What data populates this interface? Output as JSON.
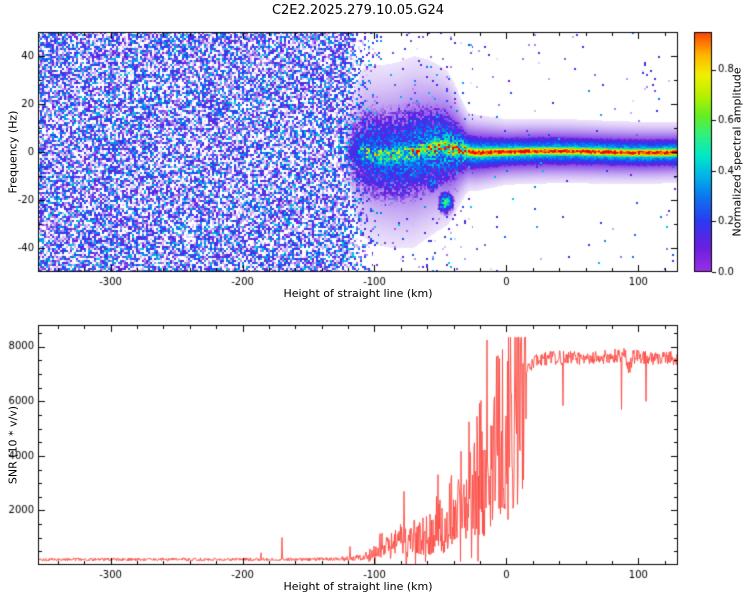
{
  "title": "C2E2.2025.279.10.05.G24",
  "chart_data": [
    {
      "type": "heatmap",
      "name": "doppler-spectrogram",
      "xlabel": "Height of straight line (km)",
      "ylabel": "Frequency (Hz)",
      "xlim": [
        -355,
        130
      ],
      "ylim": [
        -50,
        50
      ],
      "xticks": [
        -300,
        -200,
        -100,
        0,
        100
      ],
      "x_minor_step": 20,
      "yticks": [
        -40,
        -20,
        0,
        20,
        40
      ],
      "y_minor_step": 10,
      "colorbar": {
        "label": "Normalized spectral amplitude",
        "ticks": [
          0.0,
          0.2,
          0.4,
          0.6,
          0.8
        ],
        "vmax": 0.95,
        "stops": [
          [
            0.0,
            "#9b30e6"
          ],
          [
            0.1,
            "#6a1fe0"
          ],
          [
            0.2,
            "#2b3af0"
          ],
          [
            0.3,
            "#0b78f0"
          ],
          [
            0.38,
            "#00b4e8"
          ],
          [
            0.46,
            "#00e8c8"
          ],
          [
            0.54,
            "#30f080"
          ],
          [
            0.62,
            "#66ee22"
          ],
          [
            0.7,
            "#b8f000"
          ],
          [
            0.78,
            "#f0f000"
          ],
          [
            0.86,
            "#ffb400"
          ],
          [
            0.93,
            "#ff5a00"
          ],
          [
            1.0,
            "#ee0000"
          ]
        ]
      },
      "noise": {
        "full_until": -122,
        "fade_to": -92,
        "density": 0.93,
        "residual": 0.012,
        "band_residual": 0.05,
        "max_amp": 0.42
      },
      "signal": {
        "start": -123,
        "lock_at": -30,
        "amplitude": [
          [
            -123,
            0.42
          ],
          [
            -100,
            0.55
          ],
          [
            -80,
            0.62
          ],
          [
            -60,
            0.7
          ],
          [
            -45,
            0.85
          ],
          [
            -33,
            0.93
          ],
          [
            -25,
            1.0
          ],
          [
            130,
            1.0
          ]
        ],
        "core_sigma": [
          [
            -123,
            3.2
          ],
          [
            -100,
            3.0
          ],
          [
            -60,
            2.6
          ],
          [
            -40,
            2.2
          ],
          [
            -28,
            1.6
          ],
          [
            0,
            1.35
          ],
          [
            130,
            1.35
          ]
        ],
        "halo_mult": [
          [
            -123,
            3.0
          ],
          [
            -70,
            3.8
          ],
          [
            -45,
            3.4
          ],
          [
            -30,
            2.4
          ],
          [
            130,
            2.2
          ]
        ],
        "blobs": [
          {
            "x": -46,
            "f": -21,
            "sx": 3.0,
            "sf": 2.4,
            "amp": 0.5
          },
          {
            "x": -56,
            "f": -13,
            "sx": 2.4,
            "sf": 2.0,
            "amp": 0.38
          }
        ]
      }
    },
    {
      "type": "line",
      "name": "snr-profile",
      "xlabel": "Height of straight line (km)",
      "ylabel": "SNR (10 * v/v)",
      "xlim": [
        -355,
        130
      ],
      "ylim": [
        0,
        8800
      ],
      "xticks": [
        -300,
        -200,
        -100,
        0,
        100
      ],
      "x_minor_step": 20,
      "yticks": [
        2000,
        4000,
        6000,
        8000
      ],
      "y_minor_step": 500,
      "color": "#fb4a42",
      "seed": 1337,
      "profile_points": [
        [
          -355,
          200
        ],
        [
          -200,
          205
        ],
        [
          -150,
          210
        ],
        [
          -125,
          230
        ],
        [
          -115,
          260
        ],
        [
          -108,
          320
        ],
        [
          -103,
          420
        ],
        [
          -98,
          700
        ],
        [
          -93,
          900
        ],
        [
          -88,
          750
        ],
        [
          -83,
          950
        ],
        [
          -78,
          850
        ],
        [
          -73,
          1050
        ],
        [
          -68,
          950
        ],
        [
          -63,
          1250
        ],
        [
          -58,
          1100
        ],
        [
          -53,
          1500
        ],
        [
          -48,
          1400
        ],
        [
          -43,
          2200
        ],
        [
          -38,
          2600
        ],
        [
          -33,
          2400
        ],
        [
          -28,
          3200
        ],
        [
          -24,
          2800
        ],
        [
          -20,
          3800
        ],
        [
          -16,
          3400
        ],
        [
          -12,
          4400
        ],
        [
          -8,
          4800
        ],
        [
          -4,
          5200
        ],
        [
          0,
          5400
        ],
        [
          4,
          5800
        ],
        [
          8,
          6300
        ],
        [
          12,
          6800
        ],
        [
          16,
          7200
        ],
        [
          20,
          7450
        ],
        [
          25,
          7550
        ],
        [
          35,
          7600
        ],
        [
          50,
          7580
        ],
        [
          65,
          7620
        ],
        [
          80,
          7640
        ],
        [
          90,
          7700
        ],
        [
          93,
          7200
        ],
        [
          96,
          7650
        ],
        [
          105,
          7600
        ],
        [
          115,
          7580
        ],
        [
          125,
          7620
        ],
        [
          130,
          7520
        ]
      ]
    }
  ]
}
